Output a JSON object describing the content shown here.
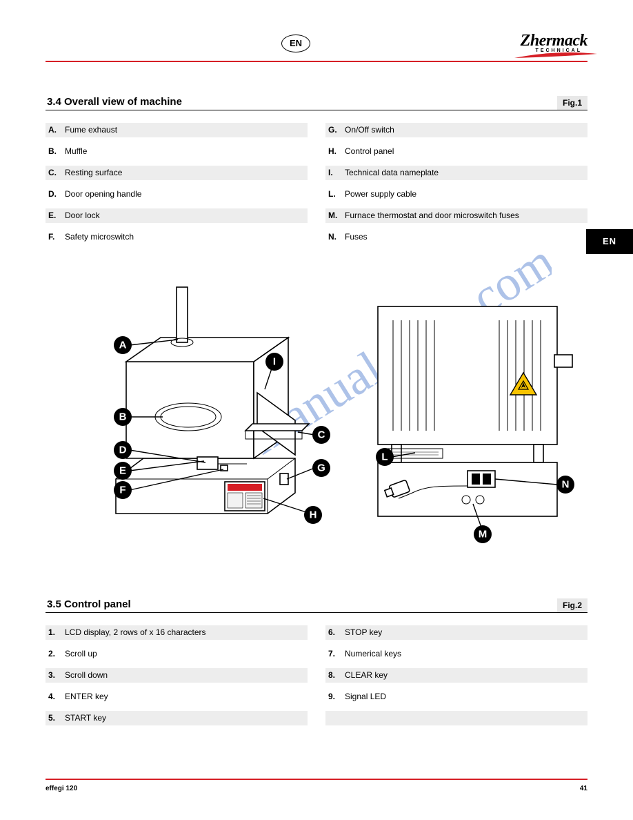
{
  "header": {
    "lang_code": "EN",
    "brand": "Zhermack",
    "brand_sub": "TECHNICAL"
  },
  "lang_tab": "EN",
  "section1": {
    "title": "3.4 Overall view of machine",
    "fig": "Fig.1",
    "items": [
      {
        "n": "A.",
        "t": "Fume exhaust"
      },
      {
        "n": "G.",
        "t": "On/Off switch"
      },
      {
        "n": "B.",
        "t": "Muffle"
      },
      {
        "n": "H.",
        "t": "Control panel"
      },
      {
        "n": "C.",
        "t": "Resting surface"
      },
      {
        "n": "I.",
        "t": "Technical data nameplate"
      },
      {
        "n": "D.",
        "t": "Door opening handle"
      },
      {
        "n": "L.",
        "t": "Power supply cable"
      },
      {
        "n": "E.",
        "t": "Door lock"
      },
      {
        "n": "M.",
        "t": "Furnace thermostat and door microswitch fuses"
      },
      {
        "n": "F.",
        "t": "Safety microswitch"
      },
      {
        "n": "N.",
        "t": "Fuses"
      }
    ]
  },
  "section2": {
    "title": "3.5 Control panel",
    "fig": "Fig.2",
    "items": [
      {
        "n": "1.",
        "t": "LCD display, 2 rows of x 16 characters"
      },
      {
        "n": "6.",
        "t": "STOP key"
      },
      {
        "n": "2.",
        "t": "Scroll up"
      },
      {
        "n": "7.",
        "t": "Numerical keys"
      },
      {
        "n": "3.",
        "t": "Scroll down"
      },
      {
        "n": "8.",
        "t": "CLEAR key"
      },
      {
        "n": "4.",
        "t": "ENTER key"
      },
      {
        "n": "9.",
        "t": "Signal LED"
      },
      {
        "n": "5.",
        "t": "START key"
      },
      {
        "n": "",
        "t": ""
      }
    ]
  },
  "figure": {
    "callouts_left": [
      "A",
      "B",
      "C",
      "D",
      "E",
      "F",
      "G",
      "H",
      "I"
    ],
    "callouts_right": [
      "L",
      "M",
      "N"
    ],
    "warning_fill": "#f8c300",
    "panel_red": "#d61f26"
  },
  "footer": {
    "model": "effegi 120",
    "page": "41"
  },
  "colors": {
    "red": "#d61f26",
    "shade": "#ededed",
    "wm": "#6a8fd6"
  }
}
